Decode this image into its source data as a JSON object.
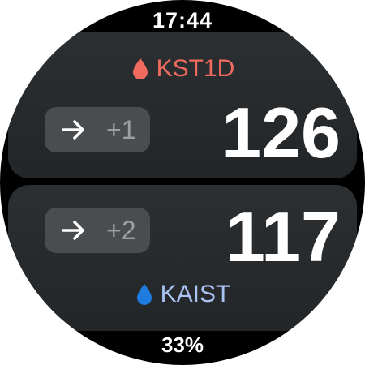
{
  "status": {
    "time": "17:44",
    "battery": "33%"
  },
  "top_card": {
    "source_name": "KST1D",
    "source_icon": "blood-drop-icon",
    "source_color": "#f06a60",
    "trend_icon": "arrow-right-icon",
    "delta": "+1",
    "value": "126"
  },
  "bottom_card": {
    "source_name": "KAIST",
    "source_icon": "water-drop-icon",
    "source_color": "#1e7be0",
    "trend_icon": "arrow-right-icon",
    "delta": "+2",
    "value": "117"
  },
  "colors": {
    "background": "#000000",
    "card": "#2a2d2f",
    "chip": "#4a4d4f",
    "primary_text": "#ffffff",
    "secondary_text": "#9c9fa1"
  }
}
